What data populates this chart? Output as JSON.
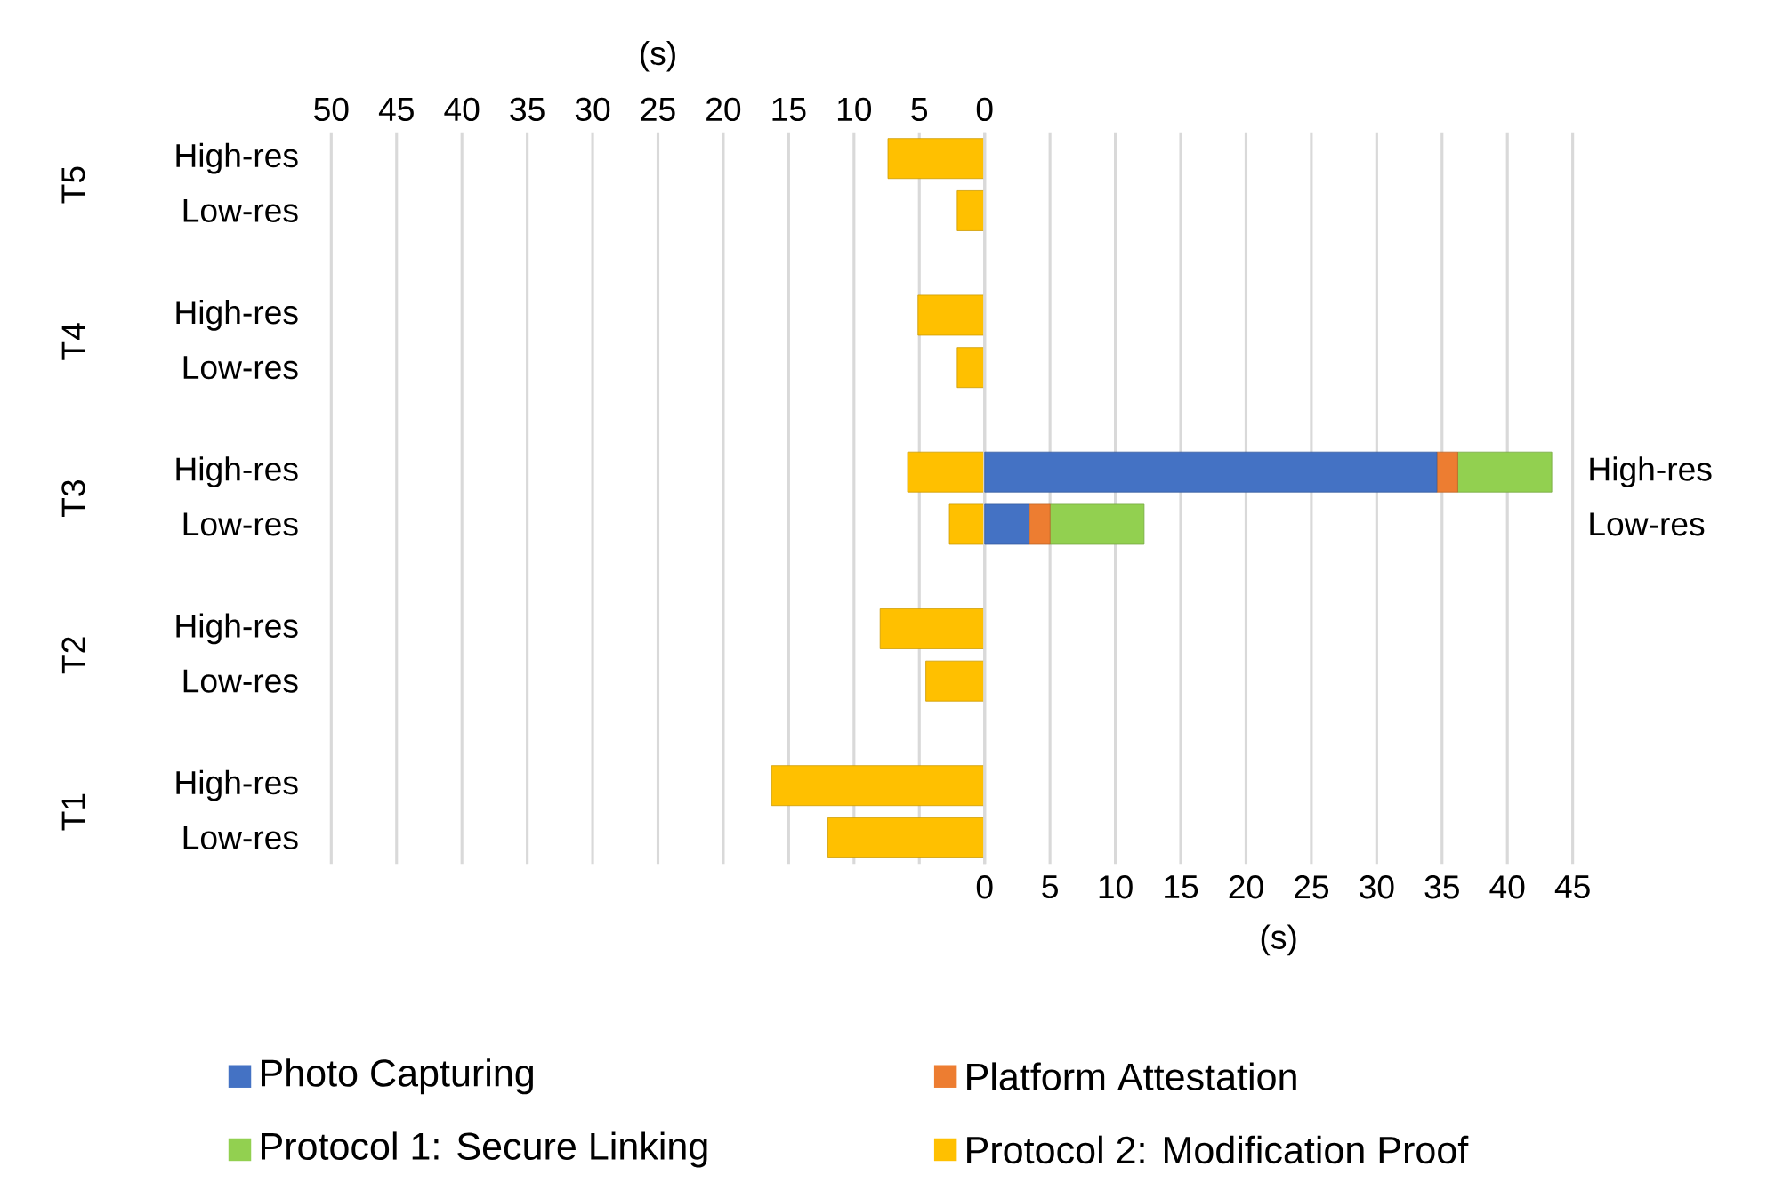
{
  "chart_data": [
    {
      "type": "bar",
      "orientation": "horizontal",
      "categories": [
        "High-res",
        "Low-res",
        null,
        "High-res",
        "Low-res",
        null,
        "High-res",
        "Low-res",
        null,
        "High-res",
        "Low-res",
        null,
        "High-res",
        "Low-res"
      ],
      "series": [
        {
          "name": "Protocol 2: Modification Proof",
          "color": "#ffc000",
          "values": [
            7.4,
            2.1,
            null,
            5.1,
            2.1,
            null,
            5.9,
            2.7,
            null,
            8.0,
            4.5,
            null,
            16.3,
            12.0
          ]
        }
      ],
      "xlim": [
        50,
        0
      ],
      "xticks": [
        50,
        45,
        40,
        35,
        30,
        25,
        20,
        15,
        10,
        5,
        0
      ],
      "xlabel": "(s)",
      "grid": "x",
      "legend": "bottom",
      "annotations": [
        "T5",
        "T4",
        "T3",
        "T2",
        "T1"
      ]
    },
    {
      "type": "bar",
      "orientation": "horizontal",
      "stacked": true,
      "categories": [
        null,
        null,
        null,
        null,
        null,
        null,
        "High-res",
        "Low-res",
        null,
        null,
        null,
        null,
        null,
        null
      ],
      "series": [
        {
          "name": "Photo Capturing",
          "color": "#4472c4",
          "values": [
            null,
            null,
            null,
            null,
            null,
            null,
            34.6,
            3.4,
            null,
            null,
            null,
            null,
            null,
            null
          ]
        },
        {
          "name": "Platform Attestation",
          "color": "#ed7d31",
          "values": [
            null,
            null,
            null,
            null,
            null,
            null,
            1.6,
            1.6,
            null,
            null,
            null,
            null,
            null,
            null
          ]
        },
        {
          "name": "Protocol 1: Secure Linking",
          "color": "#92d050",
          "values": [
            null,
            null,
            null,
            null,
            null,
            null,
            7.2,
            7.2,
            null,
            null,
            null,
            null,
            null,
            null
          ]
        }
      ],
      "xlim": [
        0,
        45
      ],
      "xticks": [
        0,
        5,
        10,
        15,
        20,
        25,
        30,
        35,
        40,
        45
      ],
      "xlabel": "(s)",
      "grid": "x",
      "legend": "bottom"
    }
  ]
}
